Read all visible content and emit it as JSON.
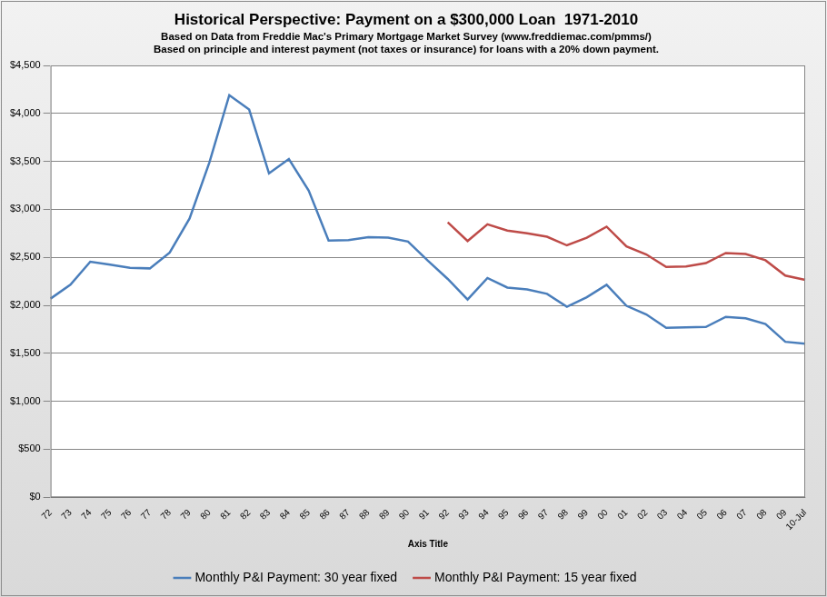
{
  "chart_data": {
    "type": "line",
    "title": "Historical Perspective: Payment on a $300,000 Loan  1971-2010",
    "subtitle": [
      "Based on Data from Freddie Mac's Primary Mortgage Market Survey (www.freddiemac.com/pmms/)",
      "Based on principle and interest payment (not taxes or insurance) for loans with a 20% down payment."
    ],
    "x_label": "Axis Title",
    "categories": [
      "72",
      "73",
      "74",
      "75",
      "76",
      "77",
      "78",
      "79",
      "80",
      "81",
      "82",
      "83",
      "84",
      "85",
      "86",
      "87",
      "88",
      "89",
      "90",
      "91",
      "92",
      "93",
      "94",
      "95",
      "96",
      "97",
      "98",
      "99",
      "00",
      "01",
      "02",
      "03",
      "04",
      "05",
      "06",
      "07",
      "08",
      "09",
      "10-Jul"
    ],
    "series": [
      {
        "name": "Monthly P&I Payment: 30 year fixed",
        "color": "#4a7ebb",
        "values": [
          2070,
          2215,
          2455,
          2425,
          2390,
          2385,
          2550,
          2905,
          3490,
          4190,
          4040,
          3375,
          3525,
          3195,
          2675,
          2680,
          2710,
          2705,
          2665,
          2465,
          2275,
          2060,
          2285,
          2185,
          2165,
          2120,
          1985,
          2085,
          2215,
          1995,
          1905,
          1765,
          1770,
          1775,
          1880,
          1865,
          1805,
          1620,
          1600
        ]
      },
      {
        "name": "Monthly P&I Payment: 15 year fixed",
        "color": "#be4b48",
        "values": [
          null,
          null,
          null,
          null,
          null,
          null,
          null,
          null,
          null,
          null,
          null,
          null,
          null,
          null,
          null,
          null,
          null,
          null,
          null,
          null,
          2865,
          2670,
          2845,
          2780,
          2750,
          2715,
          2625,
          2705,
          2820,
          2615,
          2530,
          2400,
          2405,
          2440,
          2545,
          2535,
          2470,
          2310,
          2265
        ]
      }
    ],
    "ylim": [
      0,
      4500
    ],
    "yticks": [
      {
        "value": 0,
        "label": "$0"
      },
      {
        "value": 500,
        "label": "$500"
      },
      {
        "value": 1000,
        "label": "$1,000"
      },
      {
        "value": 1500,
        "label": "$1,500"
      },
      {
        "value": 2000,
        "label": "$2,000"
      },
      {
        "value": 2500,
        "label": "$2,500"
      },
      {
        "value": 3000,
        "label": "$3,000"
      },
      {
        "value": 3500,
        "label": "$3,500"
      },
      {
        "value": 4000,
        "label": "$4,000"
      },
      {
        "value": 4500,
        "label": "$4,500"
      }
    ],
    "grid": true,
    "legend": "bottom"
  }
}
